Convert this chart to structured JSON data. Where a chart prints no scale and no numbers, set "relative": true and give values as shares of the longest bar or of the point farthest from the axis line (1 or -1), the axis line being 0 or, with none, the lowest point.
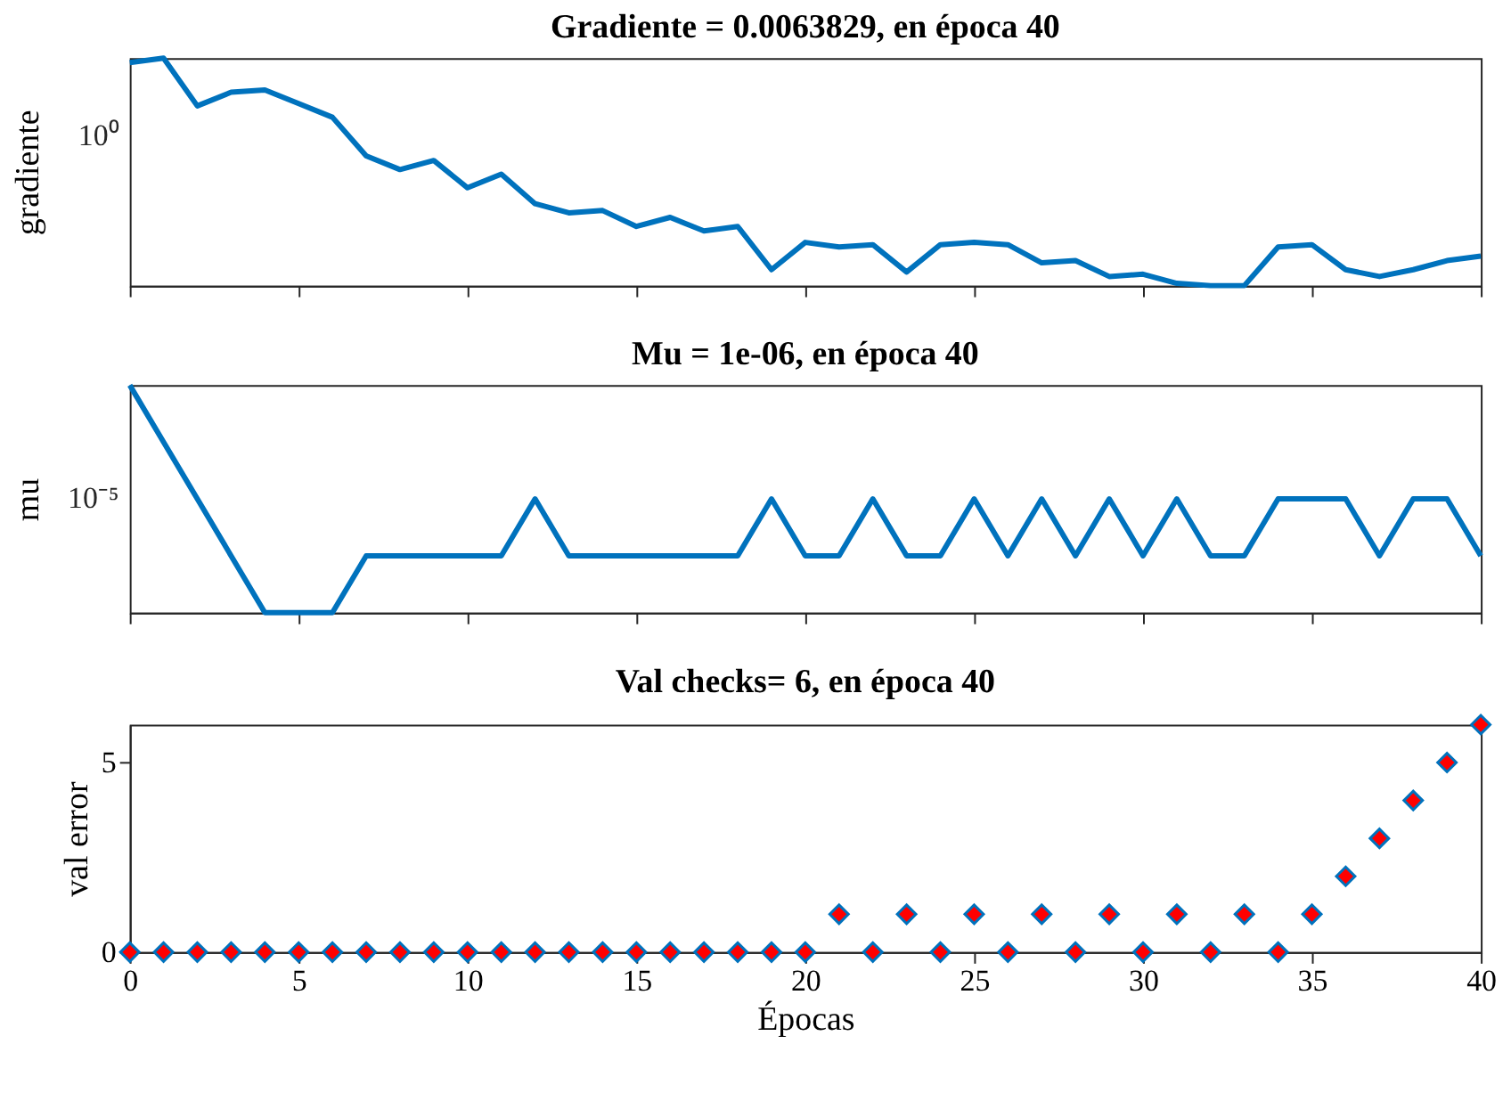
{
  "chart_data": [
    {
      "type": "line",
      "title": "Gradiente = 0.0063829, en época 40",
      "ylabel": "gradiente",
      "relative": true,
      "tick_labels": false,
      "marker": "none",
      "line_style": "solid",
      "annotations": [
        "10⁰"
      ],
      "x": [
        0,
        1,
        2,
        3,
        4,
        5,
        6,
        7,
        8,
        9,
        10,
        11,
        12,
        13,
        14,
        15,
        16,
        17,
        18,
        19,
        20,
        21,
        22,
        23,
        24,
        25,
        26,
        27,
        28,
        29,
        30,
        31,
        32,
        33,
        34,
        35,
        36,
        37,
        38,
        39,
        40
      ],
      "series": [
        {
          "color": "#0072bd",
          "values": [
            0.98,
            1,
            0.79,
            0.85,
            0.86,
            0.8,
            0.74,
            0.57,
            0.51,
            0.55,
            0.43,
            0.49,
            0.36,
            0.32,
            0.33,
            0.26,
            0.3,
            0.24,
            0.26,
            0.07,
            0.19,
            0.17,
            0.18,
            0.06,
            0.18,
            0.19,
            0.18,
            0.1,
            0.11,
            0.04,
            0.05,
            0.01,
            0,
            0,
            0.17,
            0.18,
            0.07,
            0.04,
            0.07,
            0.11,
            0.13
          ]
        }
      ],
      "xlim": [
        0,
        40
      ],
      "xticks": [
        0,
        5,
        10,
        15,
        20,
        25,
        30,
        35,
        40
      ]
    },
    {
      "type": "line",
      "title": "Mu = 1e-06, en época 40",
      "ylabel": "mu",
      "relative": true,
      "tick_labels": false,
      "marker": "none",
      "line_style": "solid",
      "annotations": [
        "10⁻⁵"
      ],
      "x": [
        0,
        1,
        2,
        3,
        4,
        5,
        6,
        7,
        8,
        9,
        10,
        11,
        12,
        13,
        14,
        15,
        16,
        17,
        18,
        19,
        20,
        21,
        22,
        23,
        24,
        25,
        26,
        27,
        28,
        29,
        30,
        31,
        32,
        33,
        34,
        35,
        36,
        37,
        38,
        39,
        40
      ],
      "series": [
        {
          "color": "#0072bd",
          "values": [
            1,
            0.75,
            0.5,
            0.25,
            0,
            0,
            0,
            0.25,
            0.25,
            0.25,
            0.25,
            0.25,
            0.5,
            0.25,
            0.25,
            0.25,
            0.25,
            0.25,
            0.25,
            0.5,
            0.25,
            0.25,
            0.5,
            0.25,
            0.25,
            0.5,
            0.25,
            0.5,
            0.25,
            0.5,
            0.25,
            0.5,
            0.25,
            0.25,
            0.5,
            0.5,
            0.5,
            0.25,
            0.5,
            0.5,
            0.25
          ]
        }
      ],
      "xlim": [
        0,
        40
      ],
      "xticks": [
        0,
        5,
        10,
        15,
        20,
        25,
        30,
        35,
        40
      ]
    },
    {
      "type": "scatter",
      "title": "Val checks= 6, en época 40",
      "xlabel": "Épocas",
      "ylabel": "val error",
      "marker": "diamond",
      "x": [
        0,
        1,
        2,
        3,
        4,
        5,
        6,
        7,
        8,
        9,
        10,
        11,
        12,
        13,
        14,
        15,
        16,
        17,
        18,
        19,
        20,
        21,
        22,
        23,
        24,
        25,
        26,
        27,
        28,
        29,
        30,
        31,
        32,
        33,
        34,
        35,
        36,
        37,
        38,
        39,
        40
      ],
      "series": [
        {
          "color": "#ff0000",
          "values": [
            0,
            0,
            0,
            0,
            0,
            0,
            0,
            0,
            0,
            0,
            0,
            0,
            0,
            0,
            0,
            0,
            0,
            0,
            0,
            0,
            0,
            1,
            0,
            1,
            0,
            1,
            0,
            1,
            0,
            1,
            0,
            1,
            0,
            1,
            0,
            1,
            2,
            3,
            4,
            5,
            6
          ]
        }
      ],
      "xlim": [
        0,
        40
      ],
      "xticks": [
        0,
        5,
        10,
        15,
        20,
        25,
        30,
        35,
        40
      ],
      "ylim": [
        0,
        6
      ],
      "yticks": [
        0,
        5
      ]
    }
  ]
}
